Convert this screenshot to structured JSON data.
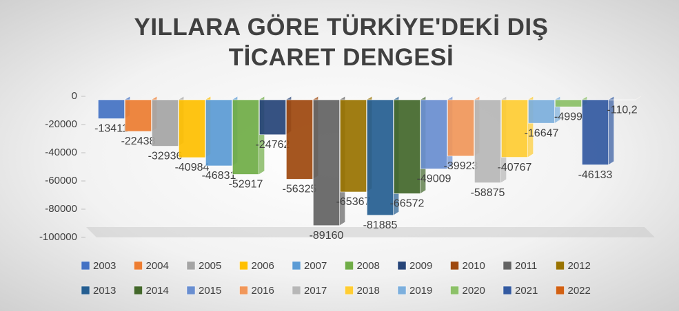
{
  "chart_data": {
    "type": "bar",
    "title": "YILLARA GÖRE TÜRKİYE'DEKİ DIŞ TİCARET DENGESİ",
    "ylim": [
      -100000,
      0
    ],
    "yticks": [
      0,
      -20000,
      -40000,
      -60000,
      -80000,
      -100000
    ],
    "legend": "bottom",
    "series": [
      {
        "name": "2003",
        "color": "#4472c4",
        "values": [
          -13411
        ]
      },
      {
        "name": "2004",
        "color": "#ed7d31",
        "values": [
          -22438
        ]
      },
      {
        "name": "2005",
        "color": "#a5a5a5",
        "values": [
          -32936
        ]
      },
      {
        "name": "2006",
        "color": "#ffc000",
        "values": [
          -40984
        ]
      },
      {
        "name": "2007",
        "color": "#5b9bd5",
        "values": [
          -46831
        ]
      },
      {
        "name": "2008",
        "color": "#70ad47",
        "values": [
          -52917
        ]
      },
      {
        "name": "2009",
        "color": "#264478",
        "values": [
          -24762
        ]
      },
      {
        "name": "2010",
        "color": "#9e480e",
        "values": [
          -56325
        ]
      },
      {
        "name": "2011",
        "color": "#636363",
        "values": [
          -89160
        ]
      },
      {
        "name": "2012",
        "color": "#997300",
        "values": [
          -65367
        ]
      },
      {
        "name": "2013",
        "color": "#255e91",
        "values": [
          -81885
        ]
      },
      {
        "name": "2014",
        "color": "#43682b",
        "values": [
          -66572
        ]
      },
      {
        "name": "2015",
        "color": "#698ed0",
        "values": [
          -49009
        ]
      },
      {
        "name": "2016",
        "color": "#f1975a",
        "values": [
          -39923
        ]
      },
      {
        "name": "2017",
        "color": "#b7b7b7",
        "values": [
          -58875
        ]
      },
      {
        "name": "2018",
        "color": "#ffcd33",
        "values": [
          -40767
        ]
      },
      {
        "name": "2019",
        "color": "#7cafdd",
        "values": [
          -16647
        ]
      },
      {
        "name": "2020",
        "color": "#8cc168",
        "values": [
          -4999
        ]
      },
      {
        "name": "2021",
        "color": "#335aa1",
        "values": [
          -46133
        ]
      },
      {
        "name": "2022",
        "color": "#d26012",
        "values": [
          -110.2
        ],
        "value_labels": [
          "-110,2"
        ]
      }
    ]
  }
}
